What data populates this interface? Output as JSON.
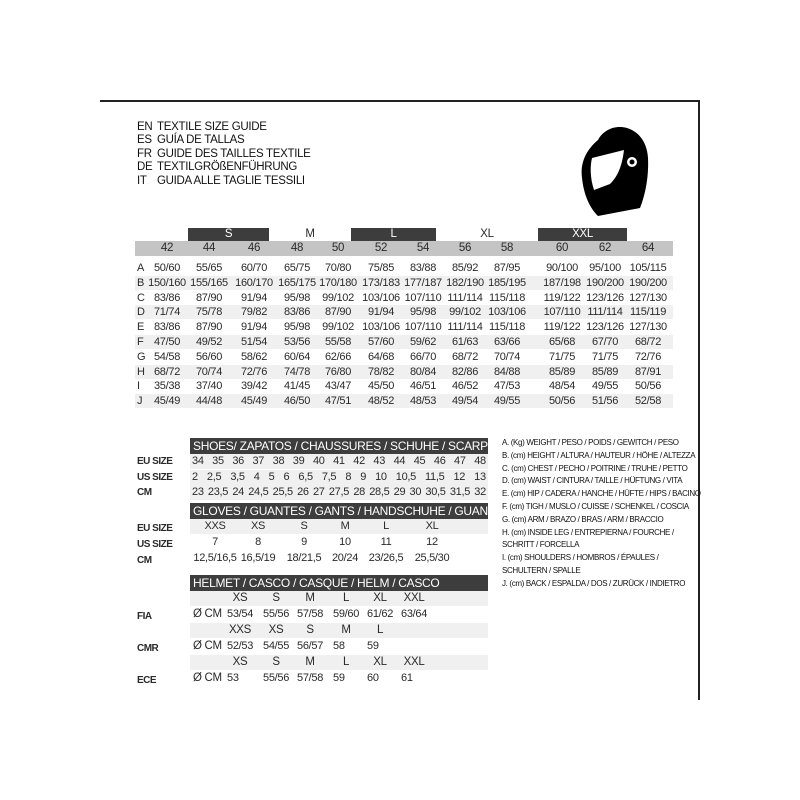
{
  "titles": [
    {
      "code": "EN",
      "text": "TEXTILE SIZE GUIDE"
    },
    {
      "code": "ES",
      "text": "GUÍA DE TALLAS"
    },
    {
      "code": "FR",
      "text": "GUIDE DES TAILLES TEXTILE"
    },
    {
      "code": "DE",
      "text": "TEXTILGRÖßENFÜHRUNG"
    },
    {
      "code": "IT",
      "text": "GUIDA ALLE TAGLIE TESSILI"
    }
  ],
  "icon": "helmet-icon",
  "textile": {
    "size_groups": [
      "S",
      "M",
      "L",
      "XL",
      "XXL"
    ],
    "eu_sizes": [
      "42",
      "44",
      "46",
      "48",
      "50",
      "52",
      "54",
      "56",
      "58",
      "60",
      "62",
      "64"
    ],
    "rows": [
      {
        "label": "A",
        "values": [
          "50/60",
          "55/65",
          "60/70",
          "65/75",
          "70/80",
          "75/85",
          "83/88",
          "85/92",
          "87/95",
          "90/100",
          "95/100",
          "105/115"
        ]
      },
      {
        "label": "B",
        "values": [
          "150/160",
          "155/165",
          "160/170",
          "165/175",
          "170/180",
          "173/183",
          "177/187",
          "182/190",
          "185/195",
          "187/198",
          "190/200",
          "190/200"
        ]
      },
      {
        "label": "C",
        "values": [
          "83/86",
          "87/90",
          "91/94",
          "95/98",
          "99/102",
          "103/106",
          "107/110",
          "111/114",
          "115/118",
          "119/122",
          "123/126",
          "127/130"
        ]
      },
      {
        "label": "D",
        "values": [
          "71/74",
          "75/78",
          "79/82",
          "83/86",
          "87/90",
          "91/94",
          "95/98",
          "99/102",
          "103/106",
          "107/110",
          "111/114",
          "115/119"
        ]
      },
      {
        "label": "E",
        "values": [
          "83/86",
          "87/90",
          "91/94",
          "95/98",
          "99/102",
          "103/106",
          "107/110",
          "111/114",
          "115/118",
          "119/122",
          "123/126",
          "127/130"
        ]
      },
      {
        "label": "F",
        "values": [
          "47/50",
          "49/52",
          "51/54",
          "53/56",
          "55/58",
          "57/60",
          "59/62",
          "61/63",
          "63/66",
          "65/68",
          "67/70",
          "68/72"
        ]
      },
      {
        "label": "G",
        "values": [
          "54/58",
          "56/60",
          "58/62",
          "60/64",
          "62/66",
          "64/68",
          "66/70",
          "68/72",
          "70/74",
          "71/75",
          "71/75",
          "72/76"
        ]
      },
      {
        "label": "H",
        "values": [
          "68/72",
          "70/74",
          "72/76",
          "74/78",
          "76/80",
          "78/82",
          "80/84",
          "82/86",
          "84/88",
          "85/89",
          "85/89",
          "87/91"
        ]
      },
      {
        "label": "I",
        "values": [
          "35/38",
          "37/40",
          "39/42",
          "41/45",
          "43/47",
          "45/50",
          "46/51",
          "46/52",
          "47/53",
          "48/54",
          "49/55",
          "50/56"
        ]
      },
      {
        "label": "J",
        "values": [
          "45/49",
          "44/48",
          "45/49",
          "46/50",
          "47/51",
          "48/52",
          "48/53",
          "49/54",
          "49/55",
          "50/56",
          "51/56",
          "52/58"
        ]
      }
    ]
  },
  "shoes": {
    "title": "SHOES/ ZAPATOS / CHAUSSURES / SCHUHE / SCARPE",
    "rows": [
      {
        "label": "EU SIZE",
        "values": [
          "34",
          "35",
          "36",
          "37",
          "38",
          "39",
          "40",
          "41",
          "42",
          "43",
          "44",
          "45",
          "46",
          "47",
          "48"
        ]
      },
      {
        "label": "US SIZE",
        "values": [
          "2",
          "2,5",
          "3,5",
          "4",
          "5",
          "6",
          "6,5",
          "7,5",
          "8",
          "9",
          "10",
          "10,5",
          "11,5",
          "12",
          "13"
        ]
      },
      {
        "label": "CM",
        "values": [
          "23",
          "23,5",
          "24",
          "24,5",
          "25,5",
          "26",
          "27",
          "27,5",
          "28",
          "28,5",
          "29",
          "30",
          "30,5",
          "31,5",
          "32"
        ]
      }
    ]
  },
  "gloves": {
    "title": "GLOVES / GUANTES / GANTS / HANDSCHUHE / GUANTI",
    "rows": [
      {
        "label": "EU SIZE",
        "values": [
          "XXS",
          "XS",
          "S",
          "M",
          "L",
          "XL"
        ]
      },
      {
        "label": "US SIZE",
        "values": [
          "7",
          "8",
          "9",
          "10",
          "11",
          "12"
        ]
      },
      {
        "label": "CM",
        "values": [
          "12,5/16,5",
          "16,5/19",
          "18/21,5",
          "20/24",
          "23/26,5",
          "25,5/30"
        ]
      }
    ]
  },
  "helmet": {
    "title": "HELMET / CASCO / CASQUE / HELM / CASCO",
    "unit": "Ø CM",
    "groups": [
      {
        "label": "FIA",
        "sizes": [
          "XS",
          "S",
          "M",
          "L",
          "XL",
          "XXL"
        ],
        "values": [
          "53/54",
          "55/56",
          "57/58",
          "59/60",
          "61/62",
          "63/64"
        ]
      },
      {
        "label": "CMR",
        "sizes": [
          "XXS",
          "XS",
          "S",
          "M",
          "L"
        ],
        "values": [
          "52/53",
          "54/55",
          "56/57",
          "58",
          "59"
        ]
      },
      {
        "label": "ECE",
        "sizes": [
          "XS",
          "S",
          "M",
          "L",
          "XL",
          "XXL"
        ],
        "values": [
          "53",
          "55/56",
          "57/58",
          "59",
          "60",
          "61"
        ]
      }
    ]
  },
  "legend": [
    "A. (Kg) WEIGHT / PESO / POIDS / GEWITCH / PESO",
    "B. (cm) HEIGHT / ALTURA / HAUTEUR / HÖHE / ALTEZZA",
    "C. (cm) CHEST / PECHO / POITRINE / TRUHE / PETTO",
    "D. (cm) WAIST / CINTURA / TAILLE / HÜFTUNG / VITA",
    "E. (cm) HIP / CADERA / HANCHE / HÜFTE / HIPS /  BACINO",
    "F.  (cm) TIGH / MUSLO / CUISSE / SCHENKEL / COSCIA",
    "G. (cm) ARM  / BRAZO / BRAS / ARM / BRACCIO",
    "H. (cm) INSIDE LEG / ENTREPIERNA / FOURCHE /",
    "SCHRITT / FORCELLA",
    "I.  (cm) SHOULDERS / HOMBROS / ÉPAULES /",
    "SCHULTERN / SPALLE",
    "J. (cm) BACK / ESPALDA / DOS / ZURÜCK / INDIETRO"
  ]
}
